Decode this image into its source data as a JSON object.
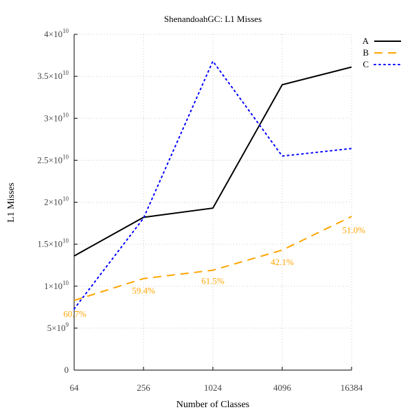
{
  "chart_data": {
    "type": "line",
    "title": "ShenandoahGC: L1 Misses",
    "xlabel": "Number of Classes",
    "ylabel": "L1 Misses",
    "x_scale": "log2",
    "x": [
      64,
      256,
      1024,
      4096,
      16384
    ],
    "x_tick_labels": [
      "64",
      "256",
      "1024",
      "4096",
      "16384"
    ],
    "ylim": [
      0,
      40000000000
    ],
    "y_ticks": [
      {
        "value": 0,
        "mant": "0",
        "exp": ""
      },
      {
        "value": 5000000000,
        "mant": "5×10",
        "exp": "9"
      },
      {
        "value": 10000000000,
        "mant": "1×10",
        "exp": "10"
      },
      {
        "value": 15000000000,
        "mant": "1.5×10",
        "exp": "10"
      },
      {
        "value": 20000000000,
        "mant": "2×10",
        "exp": "10"
      },
      {
        "value": 25000000000,
        "mant": "2.5×10",
        "exp": "10"
      },
      {
        "value": 30000000000,
        "mant": "3×10",
        "exp": "10"
      },
      {
        "value": 35000000000,
        "mant": "3.5×10",
        "exp": "10"
      },
      {
        "value": 40000000000,
        "mant": "4×10",
        "exp": "10"
      }
    ],
    "grid": true,
    "legend_position": "top-right",
    "series": [
      {
        "name": "A",
        "color": "#000000",
        "style": "solid",
        "values": [
          13600000000,
          18200000000,
          19300000000,
          34000000000,
          36100000000
        ]
      },
      {
        "name": "B",
        "color": "#ffa500",
        "style": "dashed",
        "values": [
          8300000000,
          10900000000,
          11900000000,
          14300000000,
          18300000000
        ],
        "annotations": [
          "60.7%",
          "59.4%",
          "61.5%",
          "42.1%",
          "51.0%"
        ]
      },
      {
        "name": "C",
        "color": "#0000ff",
        "style": "dotted",
        "values": [
          7300000000,
          18100000000,
          36800000000,
          25500000000,
          26400000000
        ]
      }
    ]
  }
}
